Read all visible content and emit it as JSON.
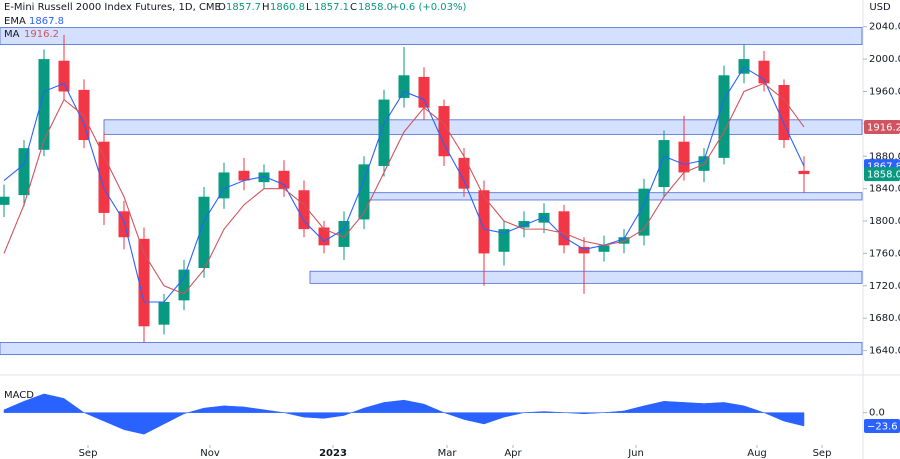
{
  "chart_data": {
    "type": "candlestick",
    "title": "E-Mini Russell 2000 Index Futures, 1D, CME",
    "ohlc": [
      {
        "name": "O",
        "value": 1857.7
      },
      {
        "name": "H",
        "value": 1860.8
      },
      {
        "name": "L",
        "value": 1857.1
      },
      {
        "name": "C",
        "value": 1858,
        "label": "1858.0"
      }
    ],
    "change": "+0.6 (+0.03%)",
    "currency": "USD",
    "up_color": "#089981",
    "down_color": "#f23645",
    "x": [
      2,
      12,
      22,
      32,
      42,
      52,
      62,
      72,
      82,
      92,
      102,
      112,
      122,
      132,
      142,
      152,
      162,
      172,
      182,
      192,
      202,
      212,
      222,
      232,
      242,
      252,
      262,
      272,
      282,
      292,
      302,
      312,
      322,
      332,
      342,
      352,
      362,
      372,
      382,
      392,
      402
    ],
    "open": [
      1820,
      1832,
      1888,
      1998,
      1962,
      1898,
      1812,
      1778,
      1672,
      1702,
      1742,
      1828,
      1862,
      1848,
      1862,
      1838,
      1792,
      1768,
      1802,
      1868,
      1952,
      1978,
      1942,
      1878,
      1838,
      1762,
      1792,
      1798,
      1812,
      1768,
      1762,
      1772,
      1782,
      1842,
      1898,
      1862,
      1878,
      1982,
      1998,
      1968,
      1862
    ],
    "high": [
      1845,
      1900,
      2012,
      2030,
      1975,
      1910,
      1825,
      1792,
      1710,
      1752,
      1842,
      1872,
      1878,
      1870,
      1875,
      1850,
      1800,
      1812,
      1880,
      1962,
      2015,
      1990,
      1950,
      1890,
      1850,
      1800,
      1812,
      1822,
      1820,
      1780,
      1782,
      1790,
      1852,
      1912,
      1930,
      1890,
      1992,
      2018,
      2010,
      1975,
      1880
    ],
    "low": [
      1805,
      1818,
      1880,
      1950,
      1890,
      1795,
      1765,
      1650,
      1660,
      1690,
      1730,
      1815,
      1838,
      1840,
      1830,
      1780,
      1760,
      1752,
      1790,
      1855,
      1940,
      1925,
      1868,
      1830,
      1720,
      1745,
      1780,
      1785,
      1760,
      1710,
      1750,
      1760,
      1770,
      1830,
      1850,
      1848,
      1870,
      1970,
      1960,
      1890,
      1835
    ],
    "close": [
      1830,
      1890,
      2000,
      1960,
      1900,
      1810,
      1780,
      1670,
      1700,
      1740,
      1830,
      1860,
      1850,
      1860,
      1840,
      1790,
      1770,
      1800,
      1870,
      1950,
      1980,
      1940,
      1880,
      1840,
      1760,
      1790,
      1800,
      1810,
      1770,
      1760,
      1770,
      1780,
      1840,
      1900,
      1860,
      1880,
      1980,
      2000,
      1970,
      1900,
      1858
    ],
    "series": [
      {
        "name": "EMA",
        "color": "#2962ff",
        "values": [
          1850,
          1870,
          1960,
          1970,
          1920,
          1840,
          1800,
          1700,
          1700,
          1730,
          1800,
          1840,
          1850,
          1855,
          1845,
          1800,
          1775,
          1790,
          1850,
          1920,
          1960,
          1950,
          1895,
          1850,
          1790,
          1785,
          1795,
          1805,
          1780,
          1765,
          1770,
          1778,
          1820,
          1880,
          1870,
          1875,
          1950,
          1990,
          1975,
          1920,
          1867.8
        ]
      },
      {
        "name": "MA",
        "color": "#d0545f",
        "values": [
          1760,
          1820,
          1900,
          1950,
          1930,
          1880,
          1830,
          1760,
          1720,
          1710,
          1740,
          1790,
          1820,
          1840,
          1840,
          1820,
          1790,
          1780,
          1810,
          1860,
          1910,
          1940,
          1920,
          1880,
          1830,
          1800,
          1790,
          1790,
          1785,
          1775,
          1770,
          1775,
          1790,
          1830,
          1860,
          1870,
          1910,
          1960,
          1970,
          1950,
          1916.2
        ]
      }
    ],
    "zones": [
      {
        "start": 0,
        "from": 2018,
        "to": 2039
      },
      {
        "start": 52,
        "from": 1907,
        "to": 1925
      },
      {
        "start": 0,
        "from": 1635,
        "to": 1650
      },
      {
        "start": 182,
        "from": 1826,
        "to": 1835
      },
      {
        "start": 155,
        "from": 1723,
        "to": 1738
      }
    ],
    "xlim": [
      0,
      431
    ],
    "xticks": [
      {
        "value": 44,
        "label": "Sep"
      },
      {
        "value": 105,
        "label": "Nov"
      },
      {
        "value": 166.5,
        "label": "2023"
      },
      {
        "value": 223.5,
        "label": "Mar"
      },
      {
        "value": 256.5,
        "label": "Apr"
      },
      {
        "value": 318,
        "label": "Jun"
      },
      {
        "value": 378.5,
        "label": "Aug"
      },
      {
        "value": 411,
        "label": "Sep"
      }
    ],
    "ylim": [
      1616,
      2073
    ],
    "yticks": [
      {
        "value": 1640,
        "label": "1640.0"
      },
      {
        "value": 1680,
        "label": "1680.0"
      },
      {
        "value": 1720,
        "label": "1720.0"
      },
      {
        "value": 1760,
        "label": "1760.0"
      },
      {
        "value": 1800,
        "label": "1800.0"
      },
      {
        "value": 1840,
        "label": "1840.0"
      },
      {
        "value": 1880,
        "label": "1880.0"
      },
      {
        "value": 1920,
        "label": "1920.0"
      },
      {
        "value": 1960,
        "label": "1960.0"
      },
      {
        "value": 2000,
        "label": "2000.0"
      },
      {
        "value": 2040,
        "label": "2040.0"
      }
    ],
    "macd": {
      "name": "MACD",
      "color": "#2962ff",
      "values": [
        5,
        20,
        33,
        25,
        0,
        -15,
        -30,
        -38,
        -20,
        -2,
        8,
        12,
        10,
        5,
        0,
        -8,
        -10,
        -5,
        8,
        18,
        22,
        15,
        0,
        -12,
        -20,
        -8,
        0,
        2,
        0,
        -2,
        0,
        3,
        12,
        20,
        18,
        16,
        18,
        12,
        0,
        -15,
        -23.6
      ],
      "last_label": "−23.6",
      "ylim": [
        -57,
        61
      ],
      "yticks": [
        {
          "value": 0,
          "label": "0.0"
        }
      ]
    }
  }
}
